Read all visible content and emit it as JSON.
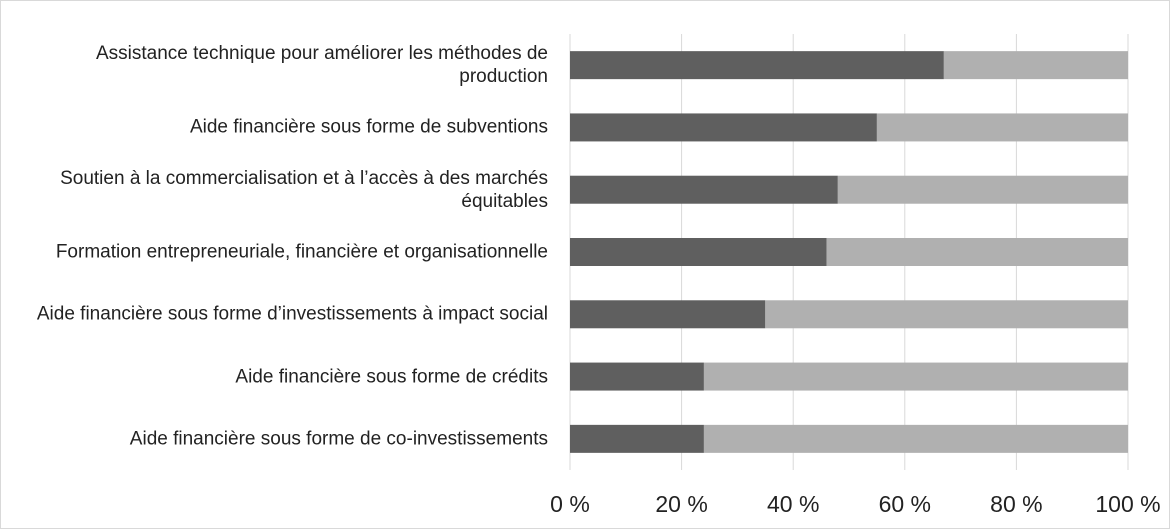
{
  "chart_data": {
    "type": "stacked_bar_horizontal",
    "categories": [
      "Assistance technique pour améliorer les méthodes de production",
      "Aide financière sous forme de subventions",
      "Soutien à la commercialisation et à l’accès à des marchés équitables",
      "Formation entrepreneuriale, financière et organisationnelle",
      "Aide financière sous forme d’investissements à impact social",
      "Aide financière sous forme de crédits",
      "Aide financière sous forme de co-investissements"
    ],
    "series": [
      {
        "color": "#5f5f5f",
        "values": [
          67,
          55,
          48,
          46,
          35,
          24,
          24
        ]
      },
      {
        "color": "#b0b0b0",
        "values": [
          33,
          45,
          52,
          54,
          65,
          76,
          76
        ]
      }
    ],
    "xlim": [
      0,
      100
    ],
    "xticks": [
      {
        "value": 0,
        "label": "0 %"
      },
      {
        "value": 20,
        "label": "20 %"
      },
      {
        "value": 40,
        "label": "40 %"
      },
      {
        "value": 60,
        "label": "60 %"
      },
      {
        "value": 80,
        "label": "80 %"
      },
      {
        "value": 100,
        "label": "100 %"
      }
    ],
    "grid": true
  }
}
